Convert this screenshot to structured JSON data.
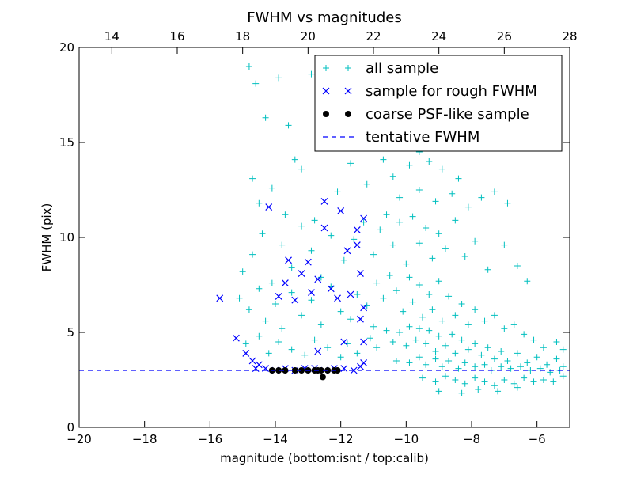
{
  "chart_data": {
    "type": "scatter",
    "title": "FWHM vs magnitudes",
    "xlabel": "magnitude (bottom:isnt / top:calib)",
    "ylabel": "FWHM (pix)",
    "xlim": [
      -20,
      -5
    ],
    "ylim": [
      0,
      20
    ],
    "x_ticks": [
      -20,
      -18,
      -16,
      -14,
      -12,
      -10,
      -8,
      -6
    ],
    "x_tick_labels": [
      "−20",
      "−18",
      "−16",
      "−14",
      "−12",
      "−10",
      "−8",
      "−6"
    ],
    "y_ticks": [
      0,
      5,
      10,
      15,
      20
    ],
    "y_tick_labels": [
      "0",
      "5",
      "10",
      "15",
      "20"
    ],
    "top_xlim": [
      13,
      28
    ],
    "top_x_ticks": [
      14,
      16,
      18,
      20,
      22,
      24,
      26,
      28
    ],
    "top_x_tick_labels": [
      "14",
      "16",
      "18",
      "20",
      "22",
      "24",
      "26",
      "28"
    ],
    "grid": false,
    "legend_position": "upper-right",
    "series": [
      {
        "name": "all sample",
        "marker": "+",
        "color": "#00bfbf",
        "points": [
          [
            -14.8,
            19.0
          ],
          [
            -14.6,
            18.1
          ],
          [
            -14.3,
            16.3
          ],
          [
            -13.9,
            18.4
          ],
          [
            -13.6,
            15.9
          ],
          [
            -13.4,
            14.1
          ],
          [
            -12.9,
            18.6
          ],
          [
            -12.4,
            16.8
          ],
          [
            -11.9,
            15.2
          ],
          [
            -11.3,
            17.4
          ],
          [
            -10.4,
            19.3
          ],
          [
            -10.0,
            16.8
          ],
          [
            -9.6,
            14.5
          ],
          [
            -9.2,
            18.1
          ],
          [
            -14.7,
            13.1
          ],
          [
            -14.5,
            11.8
          ],
          [
            -14.1,
            12.6
          ],
          [
            -13.7,
            11.2
          ],
          [
            -13.2,
            13.6
          ],
          [
            -12.8,
            10.9
          ],
          [
            -12.1,
            12.4
          ],
          [
            -11.7,
            13.9
          ],
          [
            -11.2,
            12.8
          ],
          [
            -10.7,
            14.1
          ],
          [
            -10.4,
            13.2
          ],
          [
            -10.2,
            12.1
          ],
          [
            -9.9,
            13.8
          ],
          [
            -9.6,
            12.5
          ],
          [
            -9.3,
            14.0
          ],
          [
            -9.1,
            11.9
          ],
          [
            -8.9,
            13.6
          ],
          [
            -8.6,
            12.3
          ],
          [
            -8.4,
            13.1
          ],
          [
            -8.1,
            11.6
          ],
          [
            -7.7,
            12.1
          ],
          [
            -7.3,
            12.4
          ],
          [
            -6.9,
            11.8
          ],
          [
            -15.0,
            8.2
          ],
          [
            -14.7,
            9.1
          ],
          [
            -14.4,
            10.2
          ],
          [
            -14.1,
            7.6
          ],
          [
            -13.8,
            9.6
          ],
          [
            -13.5,
            8.4
          ],
          [
            -13.2,
            10.6
          ],
          [
            -12.9,
            9.3
          ],
          [
            -12.6,
            7.9
          ],
          [
            -12.3,
            10.1
          ],
          [
            -11.9,
            8.8
          ],
          [
            -11.6,
            9.9
          ],
          [
            -11.3,
            10.8
          ],
          [
            -11.0,
            9.1
          ],
          [
            -10.8,
            10.4
          ],
          [
            -10.6,
            11.2
          ],
          [
            -10.4,
            9.6
          ],
          [
            -10.2,
            10.8
          ],
          [
            -10.0,
            8.6
          ],
          [
            -9.8,
            11.1
          ],
          [
            -9.6,
            9.7
          ],
          [
            -9.4,
            10.5
          ],
          [
            -9.2,
            8.9
          ],
          [
            -9.0,
            10.2
          ],
          [
            -8.8,
            9.4
          ],
          [
            -8.5,
            10.9
          ],
          [
            -8.2,
            9.0
          ],
          [
            -7.9,
            9.8
          ],
          [
            -7.5,
            8.3
          ],
          [
            -7.0,
            9.6
          ],
          [
            -6.6,
            8.5
          ],
          [
            -6.3,
            7.7
          ],
          [
            -15.1,
            6.8
          ],
          [
            -14.8,
            6.2
          ],
          [
            -14.5,
            7.3
          ],
          [
            -14.3,
            5.6
          ],
          [
            -14.0,
            6.5
          ],
          [
            -13.8,
            5.2
          ],
          [
            -13.5,
            7.1
          ],
          [
            -13.2,
            5.9
          ],
          [
            -12.9,
            6.7
          ],
          [
            -12.6,
            5.4
          ],
          [
            -12.3,
            7.4
          ],
          [
            -12.0,
            6.1
          ],
          [
            -11.7,
            5.7
          ],
          [
            -11.5,
            7.0
          ],
          [
            -11.2,
            6.4
          ],
          [
            -11.0,
            5.3
          ],
          [
            -10.9,
            7.6
          ],
          [
            -10.7,
            6.8
          ],
          [
            -10.5,
            8.0
          ],
          [
            -10.3,
            7.2
          ],
          [
            -10.1,
            6.1
          ],
          [
            -9.9,
            7.9
          ],
          [
            -9.8,
            6.6
          ],
          [
            -9.6,
            7.5
          ],
          [
            -9.5,
            5.8
          ],
          [
            -9.3,
            7.0
          ],
          [
            -9.2,
            6.2
          ],
          [
            -9.0,
            7.7
          ],
          [
            -8.9,
            5.6
          ],
          [
            -8.7,
            6.9
          ],
          [
            -8.5,
            5.9
          ],
          [
            -8.3,
            6.5
          ],
          [
            -8.1,
            5.4
          ],
          [
            -7.9,
            6.2
          ],
          [
            -7.6,
            5.6
          ],
          [
            -7.3,
            5.9
          ],
          [
            -7.0,
            5.2
          ],
          [
            -6.7,
            5.4
          ],
          [
            -6.4,
            4.9
          ],
          [
            -6.1,
            4.6
          ],
          [
            -5.8,
            4.2
          ],
          [
            -5.4,
            4.5
          ],
          [
            -5.2,
            4.1
          ],
          [
            -14.9,
            4.4
          ],
          [
            -14.5,
            4.8
          ],
          [
            -14.2,
            3.9
          ],
          [
            -13.9,
            4.5
          ],
          [
            -13.5,
            4.1
          ],
          [
            -13.1,
            3.8
          ],
          [
            -12.8,
            4.6
          ],
          [
            -12.4,
            4.2
          ],
          [
            -12.0,
            3.7
          ],
          [
            -11.8,
            4.4
          ],
          [
            -11.5,
            3.9
          ],
          [
            -11.1,
            4.7
          ],
          [
            -10.9,
            4.2
          ],
          [
            -10.6,
            5.1
          ],
          [
            -10.4,
            4.5
          ],
          [
            -10.2,
            5.0
          ],
          [
            -10.0,
            4.3
          ],
          [
            -9.9,
            5.3
          ],
          [
            -9.7,
            4.6
          ],
          [
            -9.6,
            5.2
          ],
          [
            -9.4,
            4.4
          ],
          [
            -9.3,
            5.1
          ],
          [
            -9.1,
            4.0
          ],
          [
            -9.0,
            4.8
          ],
          [
            -8.8,
            4.3
          ],
          [
            -8.6,
            4.9
          ],
          [
            -8.5,
            3.9
          ],
          [
            -8.3,
            4.6
          ],
          [
            -8.1,
            4.1
          ],
          [
            -7.9,
            4.4
          ],
          [
            -7.7,
            3.8
          ],
          [
            -7.5,
            4.2
          ],
          [
            -7.3,
            3.6
          ],
          [
            -7.1,
            4.0
          ],
          [
            -6.9,
            3.5
          ],
          [
            -6.6,
            3.9
          ],
          [
            -6.3,
            3.4
          ],
          [
            -6.0,
            3.7
          ],
          [
            -5.7,
            3.3
          ],
          [
            -5.4,
            3.6
          ],
          [
            -5.2,
            3.2
          ],
          [
            -10.3,
            3.5
          ],
          [
            -9.9,
            3.4
          ],
          [
            -9.6,
            3.7
          ],
          [
            -9.4,
            3.3
          ],
          [
            -9.1,
            3.6
          ],
          [
            -8.9,
            3.2
          ],
          [
            -8.7,
            3.5
          ],
          [
            -8.4,
            3.1
          ],
          [
            -8.2,
            3.4
          ],
          [
            -7.9,
            3.2
          ],
          [
            -7.6,
            3.3
          ],
          [
            -7.4,
            3.0
          ],
          [
            -7.1,
            3.2
          ],
          [
            -6.8,
            3.1
          ],
          [
            -6.5,
            3.2
          ],
          [
            -6.2,
            3.0
          ],
          [
            -5.9,
            3.1
          ],
          [
            -5.6,
            2.9
          ],
          [
            -5.3,
            3.0
          ],
          [
            -9.5,
            2.6
          ],
          [
            -9.1,
            2.4
          ],
          [
            -8.8,
            2.7
          ],
          [
            -8.5,
            2.5
          ],
          [
            -8.2,
            2.3
          ],
          [
            -7.9,
            2.6
          ],
          [
            -7.6,
            2.4
          ],
          [
            -7.3,
            2.2
          ],
          [
            -7.0,
            2.5
          ],
          [
            -6.7,
            2.3
          ],
          [
            -6.4,
            2.6
          ],
          [
            -6.1,
            2.4
          ],
          [
            -5.8,
            2.5
          ],
          [
            -5.5,
            2.4
          ],
          [
            -5.2,
            2.7
          ],
          [
            -9.0,
            1.9
          ],
          [
            -8.3,
            1.8
          ],
          [
            -7.8,
            2.0
          ],
          [
            -7.2,
            1.9
          ],
          [
            -6.6,
            2.1
          ]
        ]
      },
      {
        "name": "sample for rough FWHM",
        "marker": "x",
        "color": "#0000ff",
        "points": [
          [
            -15.7,
            6.8
          ],
          [
            -15.2,
            4.7
          ],
          [
            -14.9,
            3.9
          ],
          [
            -14.7,
            3.5
          ],
          [
            -14.5,
            3.3
          ],
          [
            -14.2,
            11.6
          ],
          [
            -13.9,
            6.9
          ],
          [
            -13.7,
            7.6
          ],
          [
            -13.6,
            8.8
          ],
          [
            -13.4,
            6.7
          ],
          [
            -13.2,
            8.1
          ],
          [
            -13.0,
            8.7
          ],
          [
            -12.9,
            7.1
          ],
          [
            -12.7,
            4.0
          ],
          [
            -12.7,
            7.8
          ],
          [
            -12.5,
            10.5
          ],
          [
            -12.5,
            11.9
          ],
          [
            -12.3,
            7.3
          ],
          [
            -12.1,
            6.8
          ],
          [
            -12.0,
            11.4
          ],
          [
            -11.9,
            4.5
          ],
          [
            -11.8,
            9.3
          ],
          [
            -11.7,
            7.0
          ],
          [
            -11.5,
            10.4
          ],
          [
            -11.5,
            9.6
          ],
          [
            -11.4,
            8.1
          ],
          [
            -11.4,
            5.7
          ],
          [
            -11.3,
            11.0
          ],
          [
            -11.3,
            6.3
          ],
          [
            -11.3,
            4.5
          ],
          [
            -11.3,
            3.4
          ],
          [
            -14.6,
            3.1
          ],
          [
            -14.3,
            3.1
          ],
          [
            -14.0,
            3.0
          ],
          [
            -13.7,
            3.1
          ],
          [
            -13.4,
            3.0
          ],
          [
            -13.1,
            3.1
          ],
          [
            -12.8,
            3.1
          ],
          [
            -12.5,
            3.0
          ],
          [
            -12.2,
            3.1
          ],
          [
            -11.9,
            3.1
          ],
          [
            -11.6,
            3.0
          ],
          [
            -11.4,
            3.2
          ]
        ]
      },
      {
        "name": "coarse PSF-like sample",
        "marker": "o",
        "color": "#000000",
        "points": [
          [
            -14.1,
            3.0
          ],
          [
            -13.9,
            3.0
          ],
          [
            -13.7,
            3.0
          ],
          [
            -13.4,
            3.0
          ],
          [
            -13.2,
            3.0
          ],
          [
            -13.0,
            3.0
          ],
          [
            -12.8,
            3.0
          ],
          [
            -12.7,
            3.0
          ],
          [
            -12.6,
            3.0
          ],
          [
            -12.4,
            3.0
          ],
          [
            -12.2,
            3.0
          ],
          [
            -12.1,
            3.0
          ],
          [
            -12.55,
            2.65
          ]
        ]
      },
      {
        "name": "tentative FWHM",
        "marker": "dashed-line",
        "color": "#0000ff",
        "points": [
          [
            -20,
            3.0
          ],
          [
            -5,
            3.0
          ]
        ]
      }
    ]
  }
}
